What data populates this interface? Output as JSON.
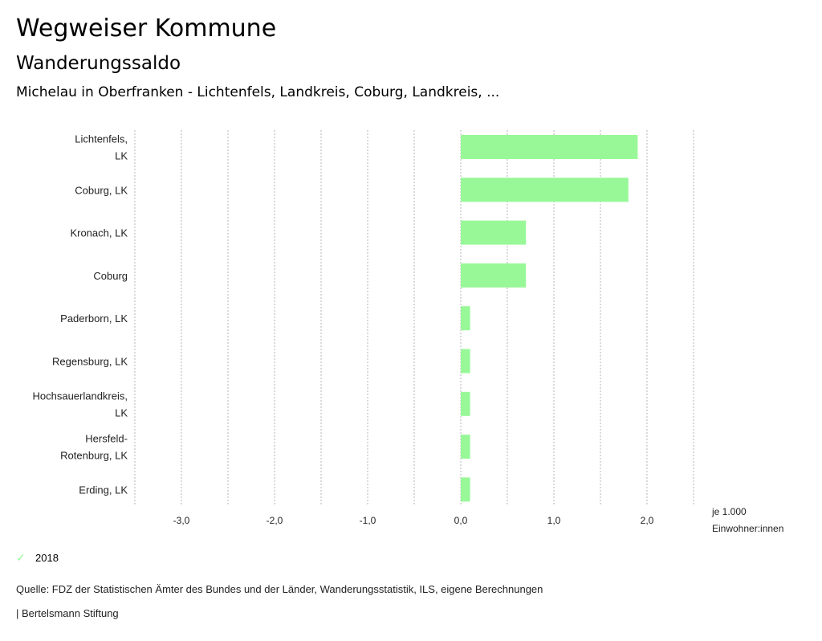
{
  "header": {
    "title": "Wegweiser Kommune",
    "subtitle": "Wanderungssaldo",
    "region": "Michelau in Oberfranken - Lichtenfels, Landkreis, Coburg, Landkreis, ..."
  },
  "chart_data": {
    "type": "bar",
    "orientation": "horizontal",
    "categories": [
      [
        "Lichtenfels,",
        "LK"
      ],
      [
        "Coburg, LK"
      ],
      [
        "Kronach, LK"
      ],
      [
        "Coburg"
      ],
      [
        "Paderborn, LK"
      ],
      [
        "Regensburg, LK"
      ],
      [
        "Hochsauerlandkreis,",
        "LK"
      ],
      [
        "Hersfeld-",
        "Rotenburg, LK"
      ],
      [
        "Erding, LK"
      ]
    ],
    "series": [
      {
        "name": "2018",
        "color": "#98f898",
        "values": [
          1.9,
          1.8,
          0.7,
          0.7,
          0.1,
          0.1,
          0.1,
          0.1,
          0.1
        ]
      }
    ],
    "xlim": [
      -3.5,
      2.5
    ],
    "xticks": [
      -3.0,
      -2.0,
      -1.0,
      0.0,
      1.0,
      2.0
    ],
    "xtick_labels": [
      "-3,0",
      "-2,0",
      "-1,0",
      "0,0",
      "1,0",
      "2,0"
    ],
    "grid_step": 0.5,
    "grid": true,
    "unit_label": [
      "je 1.000",
      "Einwohner:innen"
    ],
    "legend_position": "bottom-left"
  },
  "legend": {
    "label": "2018",
    "icon": "check-icon"
  },
  "footer": {
    "source": "Quelle: FDZ der Statistischen Ämter des Bundes und der Länder, Wanderungsstatistik, ILS, eigene Berechnungen",
    "brand": "| Bertelsmann Stiftung"
  }
}
